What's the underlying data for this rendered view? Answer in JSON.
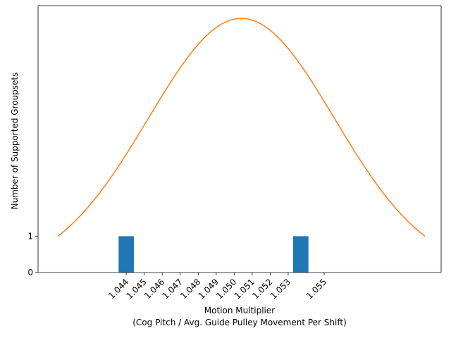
{
  "chart_data": {
    "type": "bar",
    "xlabel_line1": "Motion Multiplier",
    "xlabel_line2": "(Cog Pitch / Avg. Guide Pulley Movement Per Shift)",
    "ylabel": "Number of Supported Groupsets",
    "x_ticks": [
      "1.044",
      "1.045",
      "1.046",
      "1.047",
      "1.048",
      "1.049",
      "1.050",
      "1.051",
      "1.052",
      "1.053",
      "1.055"
    ],
    "y_ticks": [
      "0",
      "1"
    ],
    "xlim": [
      1.0391,
      1.0615
    ],
    "ylim": [
      0,
      7.35
    ],
    "bars": [
      {
        "x": 1.044,
        "value": 1
      },
      {
        "x": 1.0537,
        "value": 1
      }
    ],
    "bar_width": 0.00085,
    "bar_color": "#1f77b4",
    "curve": {
      "type": "gaussian",
      "color": "#ff7f0e",
      "x_start": 1.0402,
      "x_end": 1.0606,
      "mean": 1.0504,
      "peak": 7.0,
      "end_value": 1.0
    }
  }
}
